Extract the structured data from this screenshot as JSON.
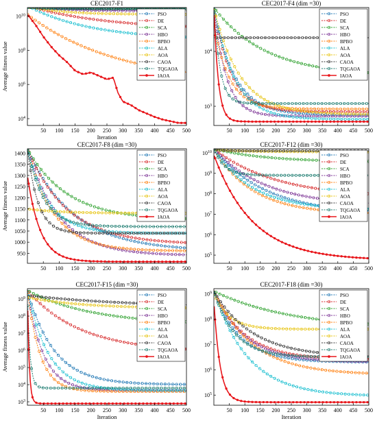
{
  "figure": {
    "common": {
      "xlabel": "Iteration",
      "ylabel": "Average fitness value",
      "xticks": [
        50,
        100,
        150,
        200,
        250,
        300,
        350,
        400,
        450,
        500
      ],
      "series_styles": [
        {
          "name": "PSO",
          "color": "#1f77b4",
          "marker": "circle"
        },
        {
          "name": "DE",
          "color": "#d62728",
          "marker": "circle"
        },
        {
          "name": "SCA",
          "color": "#2ca02c",
          "marker": "circle"
        },
        {
          "name": "HBO",
          "color": "#7b3294",
          "marker": "circle"
        },
        {
          "name": "BPBO",
          "color": "#ff7f0e",
          "marker": "circle"
        },
        {
          "name": "ALA",
          "color": "#17becf",
          "marker": "circle"
        },
        {
          "name": "AOA",
          "color": "#e6c20a",
          "marker": "circle"
        },
        {
          "name": "CAOA",
          "color": "#333333",
          "marker": "circle"
        },
        {
          "name": "TQGAOA",
          "color": "#1a7a6e",
          "marker": "circle"
        },
        {
          "name": "IAOA",
          "color": "#e8161b",
          "marker": "dot"
        }
      ]
    }
  },
  "chart_data": [
    {
      "type": "line",
      "title": "CEC2017-F1",
      "xlabel": "Iteration",
      "ylabel": "Average fitness value",
      "xlim": [
        0,
        500
      ],
      "yscale": "log",
      "ylim_log10": [
        3.6,
        10.5
      ],
      "yticks": [
        4,
        6,
        8,
        10
      ],
      "ytick_style": "power",
      "legend": "top-right",
      "series": [
        {
          "name": "PSO",
          "kind": "exp",
          "start": 10.6,
          "end": 10.4,
          "rate": 0.02
        },
        {
          "name": "DE",
          "kind": "exp",
          "start": 10.6,
          "end": 9.2,
          "rate": 0.004
        },
        {
          "name": "SCA",
          "kind": "exp",
          "start": 10.6,
          "end": 10.42,
          "rate": 0.02
        },
        {
          "name": "HBO",
          "kind": "exp",
          "start": 10.6,
          "end": 10.3,
          "rate": 0.01
        },
        {
          "name": "BPBO",
          "kind": "exp",
          "start": 10.1,
          "end": 6.0,
          "rate": 0.0035
        },
        {
          "name": "ALA",
          "kind": "exp",
          "start": 10.6,
          "end": 8.6,
          "rate": 0.005
        },
        {
          "name": "AOA",
          "kind": "exp",
          "start": 10.6,
          "end": 10.1,
          "rate": 0.01
        },
        {
          "name": "CAOA",
          "kind": "exp",
          "start": 10.6,
          "end": 10.45,
          "rate": 0.05
        },
        {
          "name": "TQGAOA",
          "kind": "exp",
          "start": 10.6,
          "end": 10.45,
          "rate": 0.05
        },
        {
          "name": "IAOA",
          "kind": "points",
          "points": [
            [
              0,
              10.1
            ],
            [
              25,
              9.5
            ],
            [
              50,
              8.8
            ],
            [
              75,
              8.2
            ],
            [
              100,
              7.7
            ],
            [
              125,
              7.3
            ],
            [
              150,
              6.8
            ],
            [
              175,
              6.6
            ],
            [
              200,
              6.7
            ],
            [
              225,
              6.5
            ],
            [
              250,
              6.3
            ],
            [
              270,
              6.4
            ],
            [
              285,
              5.5
            ],
            [
              300,
              5.0
            ],
            [
              325,
              4.8
            ],
            [
              350,
              4.5
            ],
            [
              375,
              4.3
            ],
            [
              400,
              4.1
            ],
            [
              425,
              3.95
            ],
            [
              450,
              3.85
            ],
            [
              475,
              3.75
            ],
            [
              500,
              3.75
            ]
          ]
        }
      ]
    },
    {
      "type": "line",
      "title": "CEC2017-F4 (dim =30)",
      "xlabel": "",
      "ylabel": "",
      "xlim": [
        0,
        500
      ],
      "yscale": "log",
      "ylim_log10": [
        2.65,
        4.8
      ],
      "yticks": [
        3,
        4
      ],
      "ytick_style": "power",
      "legend": "top-right",
      "series": [
        {
          "name": "PSO",
          "kind": "exp",
          "start": 4.8,
          "end": 2.84,
          "rate": 0.015
        },
        {
          "name": "DE",
          "kind": "exp",
          "start": 4.8,
          "end": 2.9,
          "rate": 0.018
        },
        {
          "name": "SCA",
          "kind": "exp",
          "start": 4.8,
          "end": 3.55,
          "rate": 0.006
        },
        {
          "name": "HBO",
          "kind": "exp",
          "start": 4.8,
          "end": 2.82,
          "rate": 0.025
        },
        {
          "name": "BPBO",
          "kind": "exp",
          "start": 4.5,
          "end": 2.95,
          "rate": 0.02
        },
        {
          "name": "ALA",
          "kind": "exp",
          "start": 4.8,
          "end": 2.76,
          "rate": 0.015
        },
        {
          "name": "AOA",
          "kind": "exp",
          "start": 4.8,
          "end": 2.85,
          "rate": 0.012
        },
        {
          "name": "CAOA",
          "kind": "exp",
          "start": 4.25,
          "end": 4.25,
          "rate": 0.1
        },
        {
          "name": "TQGAOA",
          "kind": "exp",
          "start": 4.8,
          "end": 3.05,
          "rate": 0.05
        },
        {
          "name": "IAOA",
          "kind": "exp",
          "start": 4.8,
          "end": 2.72,
          "rate": 0.07
        }
      ]
    },
    {
      "type": "line",
      "title": "CEC2017-F8 (dim =30)",
      "xlabel": "",
      "ylabel": "Average fitness value",
      "xlim": [
        0,
        500
      ],
      "yscale": "linear",
      "ylim": [
        905,
        1420
      ],
      "yticks": [
        950,
        1000,
        1050,
        1100,
        1150,
        1200,
        1250,
        1300,
        1350,
        1400
      ],
      "ytick_style": "plain",
      "legend": "top-right",
      "series": [
        {
          "name": "PSO",
          "kind": "exp",
          "start": 1420,
          "end": 960,
          "rate": 0.007
        },
        {
          "name": "DE",
          "kind": "exp",
          "start": 1420,
          "end": 990,
          "rate": 0.008
        },
        {
          "name": "SCA",
          "kind": "exp",
          "start": 1420,
          "end": 1100,
          "rate": 0.008
        },
        {
          "name": "HBO",
          "kind": "exp",
          "start": 1420,
          "end": 940,
          "rate": 0.01
        },
        {
          "name": "BPBO",
          "kind": "exp",
          "start": 1420,
          "end": 960,
          "rate": 0.012
        },
        {
          "name": "ALA",
          "kind": "exp",
          "start": 1420,
          "end": 1040,
          "rate": 0.015
        },
        {
          "name": "AOA",
          "kind": "exp",
          "start": 1150,
          "end": 1130,
          "rate": 0.01
        },
        {
          "name": "CAOA",
          "kind": "exp",
          "start": 1420,
          "end": 1040,
          "rate": 0.03
        },
        {
          "name": "TQGAOA",
          "kind": "exp",
          "start": 1420,
          "end": 1070,
          "rate": 0.02
        },
        {
          "name": "IAOA",
          "kind": "exp",
          "start": 1300,
          "end": 912,
          "rate": 0.025
        }
      ]
    },
    {
      "type": "line",
      "title": "CEC2017-F12 (dim =30)",
      "xlabel": "",
      "ylabel": "",
      "xlim": [
        0,
        500
      ],
      "yscale": "log",
      "ylim_log10": [
        4.6,
        10.2
      ],
      "yticks": [
        5,
        6,
        7,
        8,
        9,
        10
      ],
      "ytick_style": "power",
      "legend": "top-right",
      "series": [
        {
          "name": "PSO",
          "kind": "exp",
          "start": 10.2,
          "end": 7.0,
          "rate": 0.006
        },
        {
          "name": "DE",
          "kind": "exp",
          "start": 10.2,
          "end": 7.8,
          "rate": 0.005
        },
        {
          "name": "SCA",
          "kind": "exp",
          "start": 10.2,
          "end": 9.55,
          "rate": 0.006
        },
        {
          "name": "HBO",
          "kind": "exp",
          "start": 10.2,
          "end": 7.4,
          "rate": 0.006
        },
        {
          "name": "BPBO",
          "kind": "exp",
          "start": 10.2,
          "end": 7.0,
          "rate": 0.008
        },
        {
          "name": "ALA",
          "kind": "exp",
          "start": 10.2,
          "end": 7.2,
          "rate": 0.008
        },
        {
          "name": "AOA",
          "kind": "exp",
          "start": 10.15,
          "end": 10.05,
          "rate": 0.01
        },
        {
          "name": "CAOA",
          "kind": "exp",
          "start": 10.2,
          "end": 10.1,
          "rate": 0.05
        },
        {
          "name": "TQGAOA",
          "kind": "exp",
          "start": 10.2,
          "end": 8.9,
          "rate": 0.03
        },
        {
          "name": "IAOA",
          "kind": "exp",
          "start": 9.9,
          "end": 4.75,
          "rate": 0.008
        }
      ]
    },
    {
      "type": "line",
      "title": "CEC2017-F15 (dim =30)",
      "xlabel": "Iteration",
      "ylabel": "Average fitness value",
      "xlim": [
        0,
        500
      ],
      "yscale": "log",
      "ylim_log10": [
        2.8,
        9.6
      ],
      "yticks": [
        3,
        4,
        5,
        6,
        7,
        8,
        9
      ],
      "ytick_style": "power",
      "legend": "top-right",
      "series": [
        {
          "name": "PSO",
          "kind": "exp",
          "start": 9.5,
          "end": 4.0,
          "rate": 0.012
        },
        {
          "name": "DE",
          "kind": "exp",
          "start": 9.5,
          "end": 5.9,
          "rate": 0.006
        },
        {
          "name": "SCA",
          "kind": "exp",
          "start": 9.5,
          "end": 7.5,
          "rate": 0.005
        },
        {
          "name": "HBO",
          "kind": "exp",
          "start": 9.5,
          "end": 3.65,
          "rate": 0.02
        },
        {
          "name": "BPBO",
          "kind": "exp",
          "start": 9.5,
          "end": 3.6,
          "rate": 0.025
        },
        {
          "name": "ALA",
          "kind": "exp",
          "start": 9.5,
          "end": 3.65,
          "rate": 0.015
        },
        {
          "name": "AOA",
          "kind": "exp",
          "start": 9.1,
          "end": 8.45,
          "rate": 0.006
        },
        {
          "name": "CAOA",
          "kind": "exp",
          "start": 9.2,
          "end": 8.5,
          "rate": 0.003
        },
        {
          "name": "TQGAOA",
          "kind": "exp",
          "start": 9.2,
          "end": 3.8,
          "rate": 0.12
        },
        {
          "name": "IAOA",
          "kind": "exp",
          "start": 9.4,
          "end": 2.9,
          "rate": 0.18
        }
      ]
    },
    {
      "type": "line",
      "title": "CEC2017-F18 (dim =30)",
      "xlabel": "Iteration",
      "ylabel": "",
      "xlim": [
        0,
        500
      ],
      "yscale": "log",
      "ylim_log10": [
        4.6,
        9.2
      ],
      "yticks": [
        5,
        6,
        7,
        8,
        9
      ],
      "ytick_style": "power",
      "legend": "top-right",
      "series": [
        {
          "name": "PSO",
          "kind": "exp",
          "start": 9.1,
          "end": 6.3,
          "rate": 0.012
        },
        {
          "name": "DE",
          "kind": "exp",
          "start": 9.1,
          "end": 6.4,
          "rate": 0.01
        },
        {
          "name": "SCA",
          "kind": "exp",
          "start": 9.1,
          "end": 7.6,
          "rate": 0.004
        },
        {
          "name": "HBO",
          "kind": "exp",
          "start": 9.1,
          "end": 6.3,
          "rate": 0.01
        },
        {
          "name": "BPBO",
          "kind": "exp",
          "start": 9.1,
          "end": 5.8,
          "rate": 0.008
        },
        {
          "name": "ALA",
          "kind": "exp",
          "start": 9.1,
          "end": 4.95,
          "rate": 0.009
        },
        {
          "name": "AOA",
          "kind": "exp",
          "start": 9.0,
          "end": 7.6,
          "rate": 0.02
        },
        {
          "name": "CAOA",
          "kind": "exp",
          "start": 9.1,
          "end": 6.5,
          "rate": 0.008
        },
        {
          "name": "TQGAOA",
          "kind": "exp",
          "start": 9.1,
          "end": 6.5,
          "rate": 0.015
        },
        {
          "name": "IAOA",
          "kind": "exp",
          "start": 8.7,
          "end": 4.72,
          "rate": 0.05
        }
      ]
    }
  ]
}
